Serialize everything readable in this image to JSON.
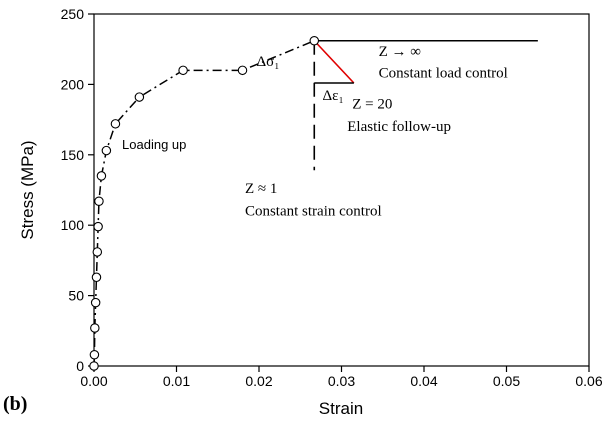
{
  "panel_label": "(b)",
  "chart_data": {
    "type": "line",
    "xlabel": "Strain",
    "ylabel": "Stress (MPa)",
    "xlim": [
      0,
      0.06
    ],
    "ylim": [
      0,
      250
    ],
    "xticks": [
      0.0,
      0.01,
      0.02,
      0.03,
      0.04,
      0.05,
      0.06
    ],
    "xtick_labels": [
      "0.00",
      "0.01",
      "0.02",
      "0.03",
      "0.04",
      "0.05",
      "0.06"
    ],
    "yticks": [
      0,
      50,
      100,
      150,
      200,
      250
    ],
    "ytick_labels": [
      "0",
      "50",
      "100",
      "150",
      "200",
      "250"
    ],
    "grid": false,
    "series": [
      {
        "style": "dash-dot with open circle markers",
        "color": "#000000",
        "x": [
          0.0,
          5e-05,
          0.0001,
          0.0002,
          0.0003,
          0.0004,
          0.0005,
          0.0006,
          0.0009,
          0.0015,
          0.0026,
          0.0055,
          0.0108,
          0.018,
          0.0267
        ],
        "y": [
          0,
          8,
          27,
          45,
          63,
          81,
          99,
          117,
          135,
          153,
          172,
          191,
          210,
          210,
          231
        ]
      }
    ],
    "reference_lines": [
      {
        "name": "constant-load-line",
        "color": "#000000",
        "style": "solid",
        "x": [
          0.0267,
          0.0538
        ],
        "y": [
          231,
          231
        ]
      },
      {
        "name": "elastic-follow-up-line",
        "color": "#e00000",
        "style": "solid",
        "x": [
          0.0267,
          0.0315
        ],
        "y": [
          231,
          201
        ]
      },
      {
        "name": "constant-strain-line",
        "color": "#000000",
        "style": "dashed",
        "x": [
          0.0267,
          0.0267
        ],
        "y": [
          231,
          139
        ]
      },
      {
        "name": "delta-strain-line",
        "color": "#000000",
        "style": "solid",
        "x": [
          0.0267,
          0.0315
        ],
        "y": [
          201,
          201
        ]
      }
    ],
    "annotations": [
      {
        "name": "z-infinity-label",
        "text": "Z → ∞",
        "x": 0.0345,
        "y": 220
      },
      {
        "name": "constant-load-label",
        "text": "Constant load control",
        "x": 0.0345,
        "y": 205
      },
      {
        "name": "delta-sigma-label",
        "text": "Δσ₁",
        "x": 0.0197,
        "y": 213
      },
      {
        "name": "delta-epsilon-label",
        "text": "Δε₁",
        "x": 0.0277,
        "y": 189
      },
      {
        "name": "z-20-label",
        "text": "Z = 20",
        "x": 0.0313,
        "y": 183
      },
      {
        "name": "elastic-follow-up-label",
        "text": "Elastic follow-up",
        "x": 0.0307,
        "y": 167
      },
      {
        "name": "loading-up-label",
        "text": "Loading up",
        "x": 0.0034,
        "y": 154
      },
      {
        "name": "z-approx-1-label",
        "text": "Z ≈ 1",
        "x": 0.0183,
        "y": 123
      },
      {
        "name": "constant-strain-label",
        "text": "Constant strain control",
        "x": 0.0183,
        "y": 107
      }
    ]
  }
}
